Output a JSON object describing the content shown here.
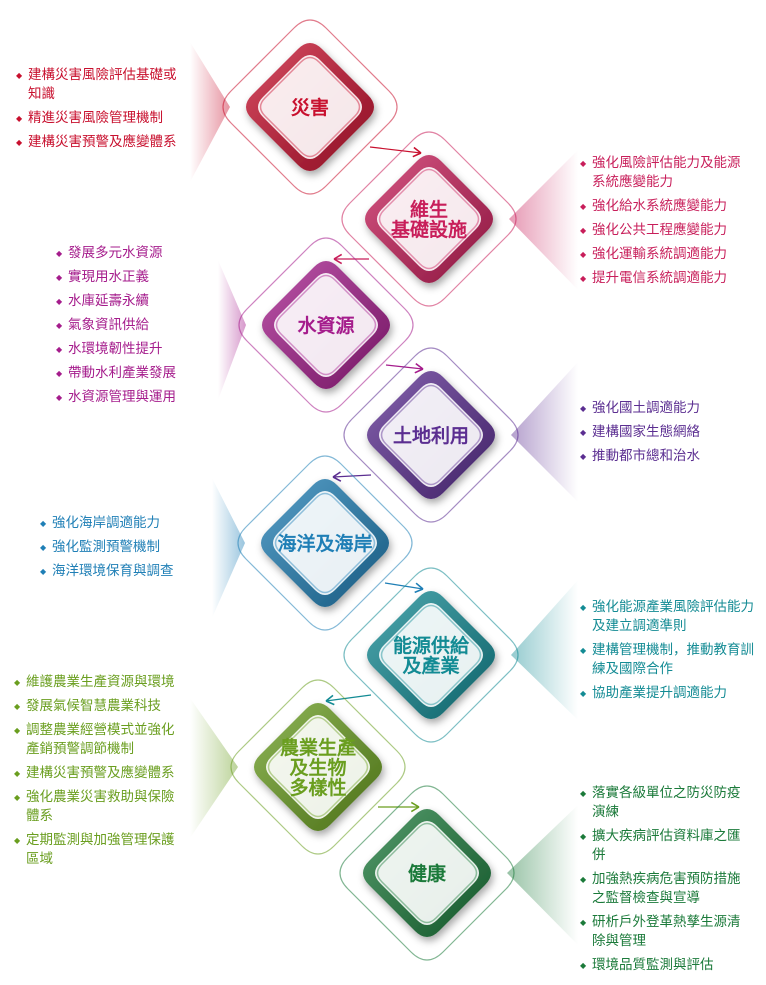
{
  "nodes": [
    {
      "id": "disaster",
      "lines": [
        "災害"
      ],
      "color": "#c8102e",
      "items": [
        "建構災害風險評估基礎或知識",
        "精進災害風險管理機制",
        "建構災害預警及應變體系"
      ]
    },
    {
      "id": "infrastructure",
      "lines": [
        "維生",
        "基礎設施"
      ],
      "color": "#c81e5a",
      "items": [
        "強化風險評估能力及能源系統應變能力",
        "強化給水系統應變能力",
        "強化公共工程應變能力",
        "強化運輸系統調適能力",
        "提升電信系統調適能力"
      ]
    },
    {
      "id": "water",
      "lines": [
        "水資源"
      ],
      "color": "#a51c8c",
      "items": [
        "發展多元水資源",
        "實現用水正義",
        "水庫延壽永續",
        "氣象資訊供給",
        "水環境韌性提升",
        "帶動水利產業發展",
        "水資源管理與運用"
      ]
    },
    {
      "id": "land",
      "lines": [
        "土地利用"
      ],
      "color": "#5b2e91",
      "items": [
        "強化國土調適能力",
        "建構國家生態網絡",
        "推動都市總和治水"
      ]
    },
    {
      "id": "ocean",
      "lines": [
        "海洋及海岸"
      ],
      "color": "#1f7fb6",
      "items": [
        "強化海岸調適能力",
        "強化監測預警機制",
        "海洋環境保育與調查"
      ]
    },
    {
      "id": "energy",
      "lines": [
        "能源供給",
        "及產業"
      ],
      "color": "#138b94",
      "items": [
        "強化能源產業風險評估能力及建立調適準則",
        "建構管理機制，推動教育訓練及國際合作",
        "協助產業提升調適能力"
      ]
    },
    {
      "id": "agriculture",
      "lines": [
        "農業生產",
        "及生物",
        "多樣性"
      ],
      "color": "#6a9e1f",
      "items": [
        "維護農業生產資源與環境",
        "發展氣候智慧農業科技",
        "調整農業經營模式並強化產銷預警調節機制",
        "建構災害預警及應變體系",
        "強化農業災害救助與保險體系",
        "定期監測與加強管理保護區域"
      ]
    },
    {
      "id": "health",
      "lines": [
        "健康"
      ],
      "color": "#1b7a3a",
      "items": [
        "落實各級單位之防災防疫演練",
        "擴大疾病評估資料庫之匯併",
        "加強熱疾病危害預防措施之監督檢查與宣導",
        "研析戶外登革熱孳生源清除與管理",
        "環境品質監測與評估"
      ]
    }
  ]
}
